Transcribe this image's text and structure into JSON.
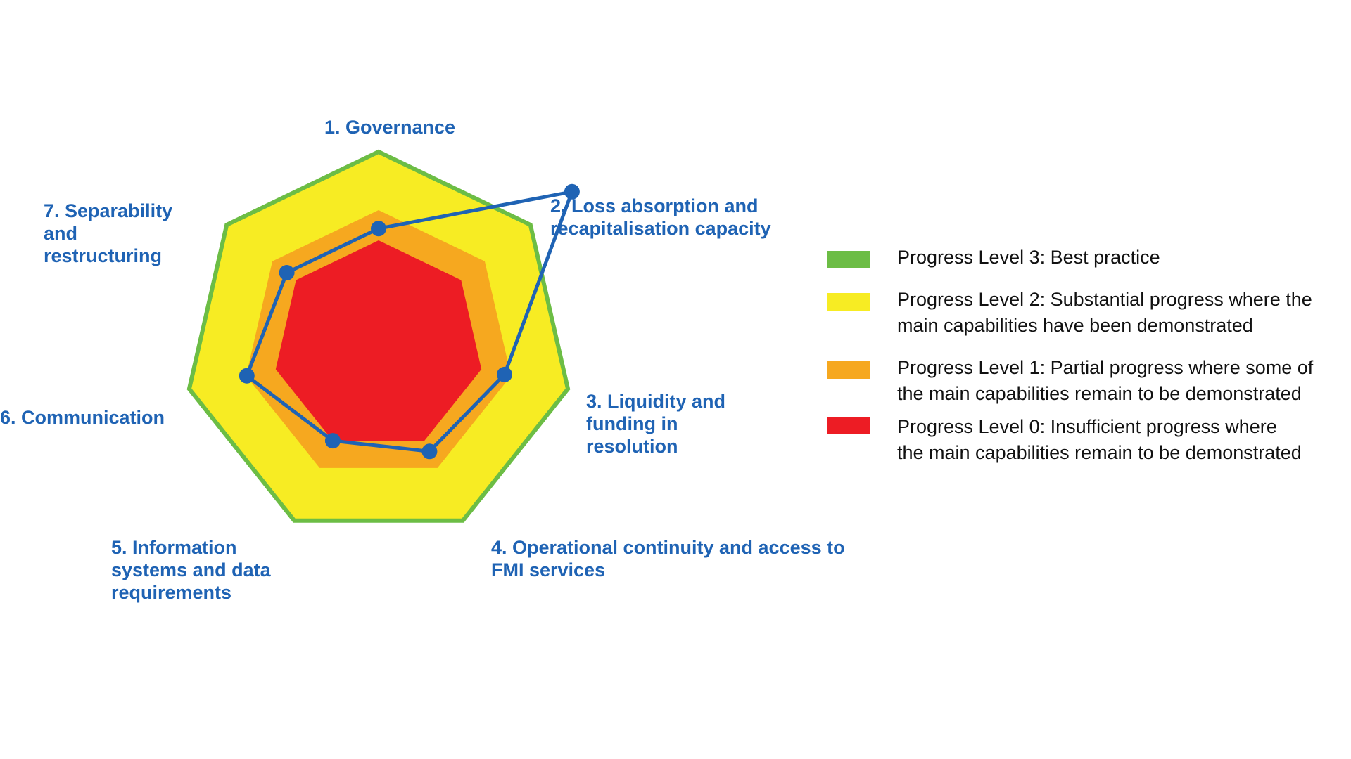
{
  "chart_data": {
    "type": "radar",
    "axes": [
      "1. Governance",
      "2. Loss absorption and recapitalisation capacity",
      "3. Liquidity and funding in resolution",
      "4. Operational continuity and access to FMI services",
      "5. Information systems and data requirements",
      "6. Communication",
      "7. Separability and restructuring"
    ],
    "axis_label_lines": [
      [
        "1. Governance"
      ],
      [
        "2. Loss absorption and",
        "recapitalisation capacity"
      ],
      [
        "3. Liquidity and",
        "funding in",
        "resolution"
      ],
      [
        "4. Operational continuity and access to",
        "FMI services"
      ],
      [
        "5. Information",
        "systems and data",
        "requirements"
      ],
      [
        "6. Communication"
      ],
      [
        "7. Separability",
        "and",
        "restructuring"
      ]
    ],
    "scale_range": [
      0,
      3
    ],
    "bands": [
      {
        "name": "Progress Level 3: Best practice",
        "level": 3,
        "color": "#6cbd45"
      },
      {
        "name": "Progress Level 2: Substantial progress where the main capabilities have been demonstrated",
        "level": 2,
        "color": "#f7ec23"
      },
      {
        "name": "Progress Level 1: Partial progress where some of the main capabilities remain to be demonstrated",
        "level": 1,
        "color": "#f6a81f"
      },
      {
        "name": "Progress Level 0: Insufficient progress where the main capabilities remain to be demonstrated",
        "level": 0,
        "color": "#ed1c24"
      }
    ],
    "series": [
      {
        "values": [
          1.1,
          2.2,
          1.2,
          1.1,
          1.0,
          1.25,
          1.1
        ],
        "color": "#1f63b4"
      }
    ],
    "grid": false,
    "legend_position": "right"
  },
  "legend": {
    "items": [
      {
        "lines": [
          "Progress Level 3: Best practice"
        ],
        "color": "#6cbd45"
      },
      {
        "lines": [
          "Progress Level 2: Substantial progress where the",
          "main capabilities have been demonstrated"
        ],
        "color": "#f7ec23"
      },
      {
        "lines": [
          "Progress Level 1: Partial progress where some of",
          "the main capabilities remain to be demonstrated"
        ],
        "color": "#f6a81f"
      },
      {
        "lines": [
          "Progress Level 0: Insufficient progress where",
          "the main capabilities remain to be demonstrated"
        ],
        "color": "#ed1c24"
      }
    ]
  }
}
